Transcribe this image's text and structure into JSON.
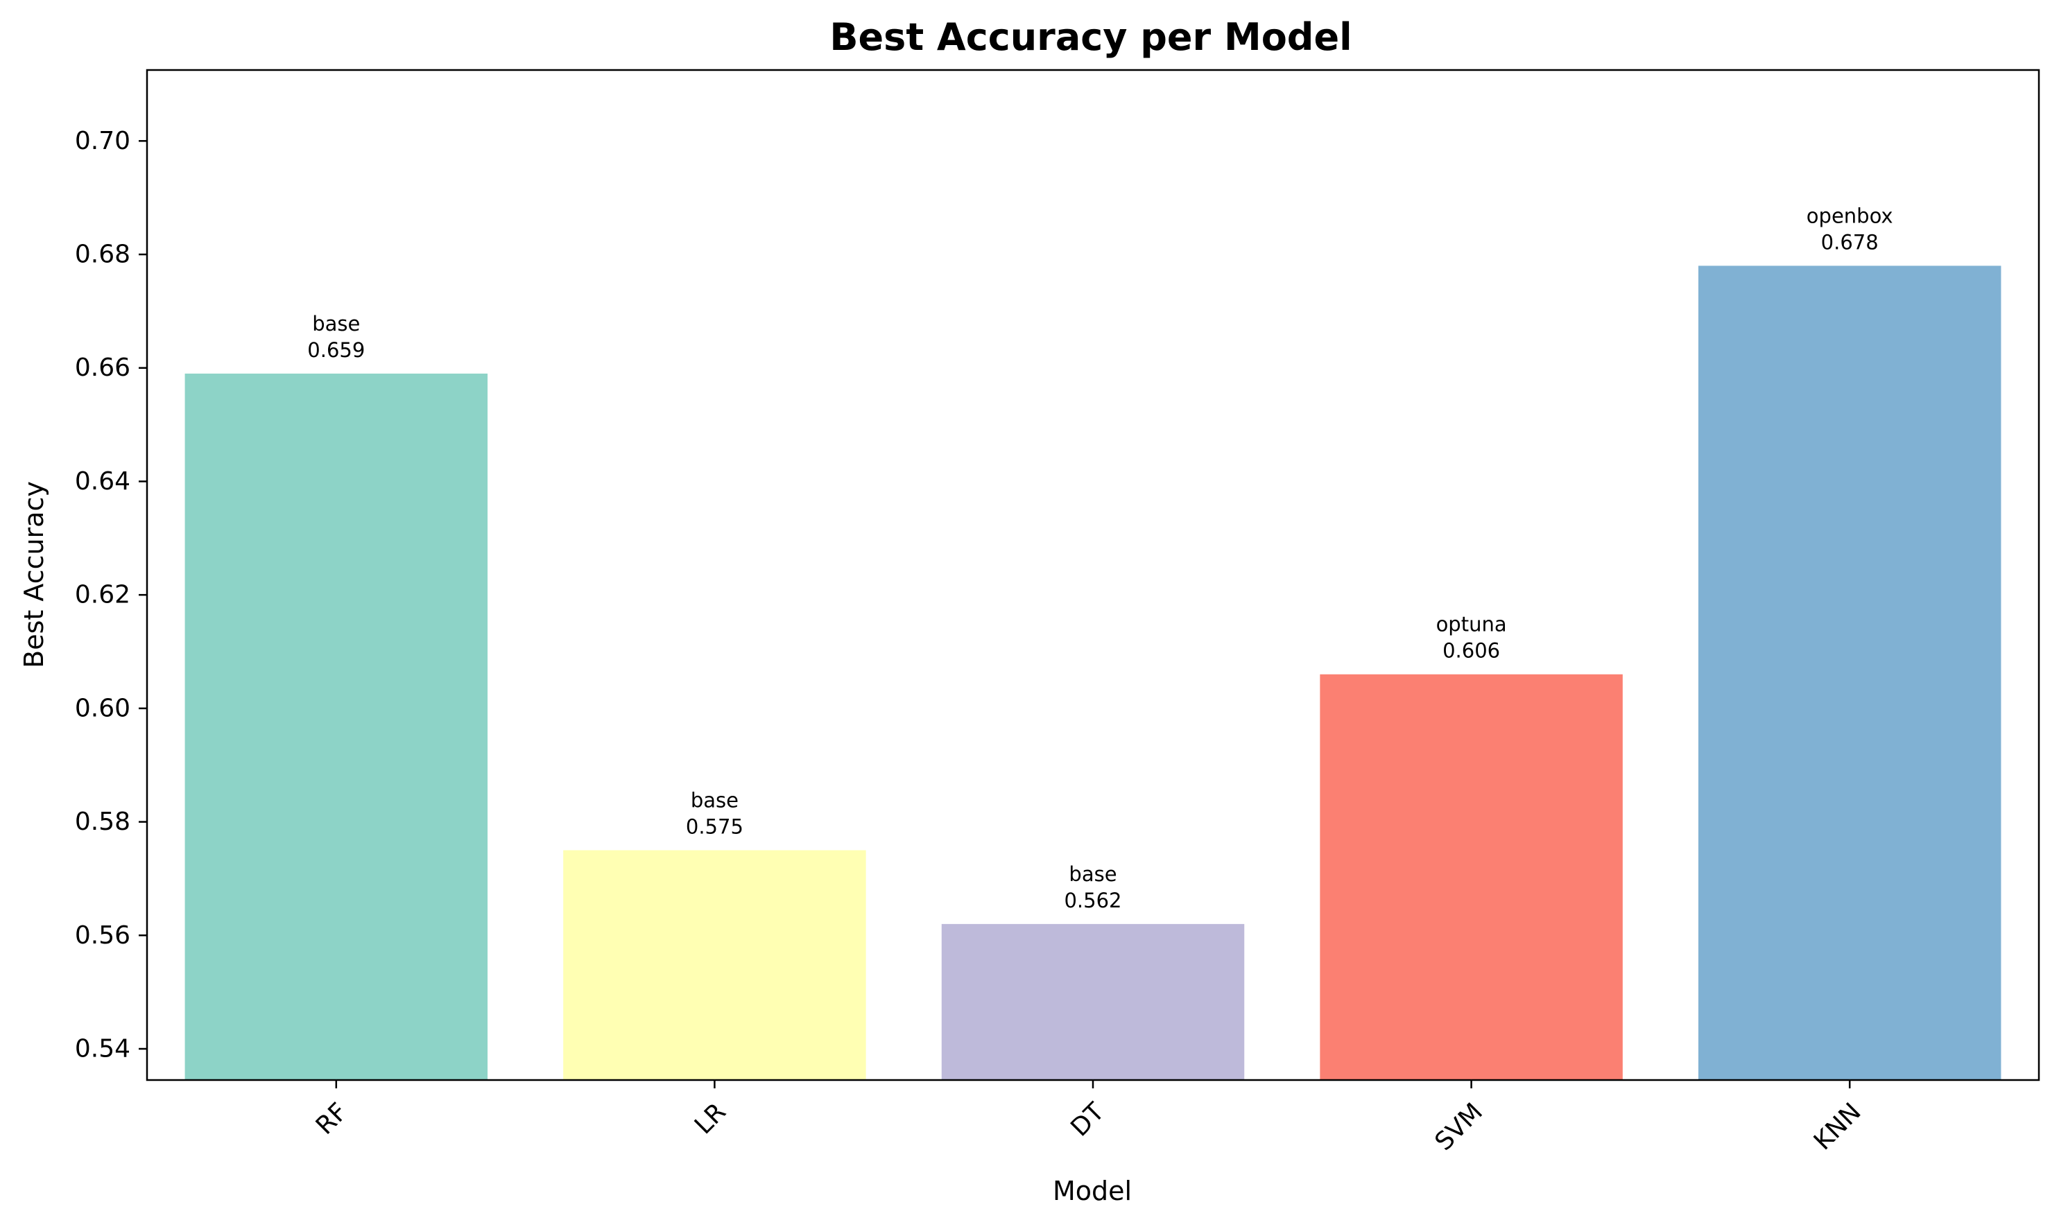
{
  "chart_data": {
    "type": "bar",
    "title": "Best Accuracy per Model",
    "xlabel": "Model",
    "ylabel": "Best Accuracy",
    "categories": [
      "RF",
      "LR",
      "DT",
      "SVM",
      "KNN"
    ],
    "values": [
      0.659,
      0.575,
      0.562,
      0.606,
      0.678
    ],
    "bar_labels": [
      "base",
      "base",
      "base",
      "optuna",
      "openbox"
    ],
    "value_labels": [
      "0.659",
      "0.575",
      "0.562",
      "0.606",
      "0.678"
    ],
    "colors": [
      "#8dd3c7",
      "#ffffb3",
      "#bebada",
      "#fb8072",
      "#80b1d3"
    ],
    "ylim": [
      0.5345,
      0.7125
    ],
    "yticks": [
      0.54,
      0.56,
      0.58,
      0.6,
      0.62,
      0.64,
      0.66,
      0.68,
      0.7
    ],
    "ytick_labels": [
      "0.54",
      "0.56",
      "0.58",
      "0.60",
      "0.62",
      "0.64",
      "0.66",
      "0.68",
      "0.70"
    ],
    "x_tick_rotation": 45,
    "grid": false,
    "legend": "none"
  }
}
